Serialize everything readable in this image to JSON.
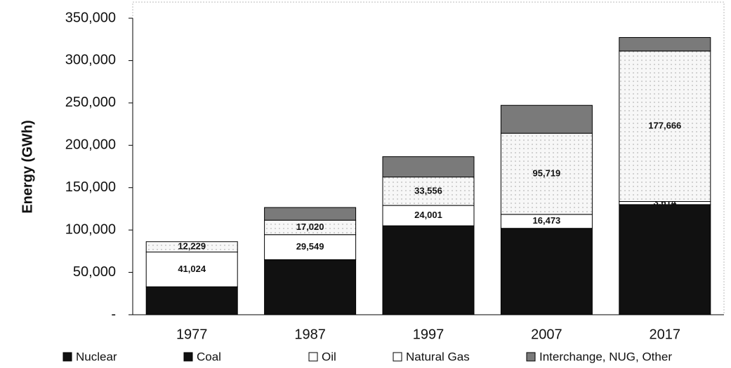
{
  "chart_data": {
    "type": "stacked_bar",
    "y_label": "Energy (GWh)",
    "categories": [
      "1977",
      "1987",
      "1997",
      "2007",
      "2017"
    ],
    "series": [
      {
        "name": "Nuclear",
        "color": "#111111",
        "values": [
          33000,
          65000,
          105000,
          102000,
          130000
        ]
      },
      {
        "name": "Coal",
        "color": "#111111",
        "values": [
          null,
          null,
          null,
          null,
          null
        ]
      },
      {
        "name": "Oil",
        "color": "#ffffff",
        "values": [
          41024,
          29549,
          24001,
          16473,
          3614
        ],
        "value_labels": [
          "41,024",
          "29,549",
          "24,001",
          "16,473",
          "3,614"
        ]
      },
      {
        "name": "Natural Gas",
        "color": "#f3f3f3",
        "values": [
          12229,
          17020,
          33556,
          95719,
          177666
        ],
        "value_labels": [
          "12,229",
          "17,020",
          "33,556",
          "95,719",
          "177,666"
        ]
      },
      {
        "name": "Interchange, NUG, Other",
        "color": "#7a7a7a",
        "values": [
          0,
          15000,
          24000,
          33000,
          16000
        ]
      }
    ],
    "ylim": [
      0,
      350000
    ],
    "yticks": [
      {
        "value": 0,
        "label": "-"
      },
      {
        "value": 50000,
        "label": "50,000"
      },
      {
        "value": 100000,
        "label": "100,000"
      },
      {
        "value": 150000,
        "label": "150,000"
      },
      {
        "value": 200000,
        "label": "200,000"
      },
      {
        "value": 250000,
        "label": "250,000"
      },
      {
        "value": 300000,
        "label": "300,000"
      },
      {
        "value": 350000,
        "label": "350,000"
      }
    ],
    "legend": "bottom"
  }
}
